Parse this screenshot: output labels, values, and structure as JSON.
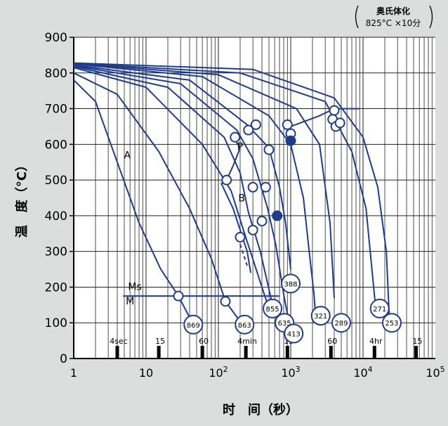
{
  "chart_data": {
    "type": "line",
    "note_line1": "奥氏体化",
    "note_line2": "825°C ×10分",
    "xlabel": "时　间（秒）",
    "ylabel": "温　度（°C）",
    "x_scale": "log",
    "xlim": [
      1,
      100000
    ],
    "ylim": [
      0,
      900
    ],
    "y_ticks": [
      0,
      100,
      200,
      300,
      400,
      500,
      600,
      700,
      800,
      900
    ],
    "x_ticks": [
      {
        "value": 1,
        "label": "1"
      },
      {
        "value": 10,
        "label": "10"
      },
      {
        "value": 100,
        "label": "10",
        "sup": "2"
      },
      {
        "value": 1000,
        "label": "10",
        "sup": "3"
      },
      {
        "value": 10000,
        "label": "10",
        "sup": "4"
      },
      {
        "value": 100000,
        "label": "10",
        "sup": "5"
      }
    ],
    "time_markers": [
      {
        "value": 4,
        "label": "4sec"
      },
      {
        "value": 15,
        "label": "15"
      },
      {
        "value": 60,
        "label": "60"
      },
      {
        "value": 240,
        "label": "4min"
      },
      {
        "value": 900,
        "label": "15"
      },
      {
        "value": 3600,
        "label": "60"
      },
      {
        "value": 14400,
        "label": "4hr"
      },
      {
        "value": 54000,
        "label": "15"
      }
    ],
    "grid": true,
    "ms_temperature": 175,
    "ms_line_xrange": [
      4.8,
      700
    ],
    "labels": [
      {
        "text": "A",
        "x": 5.5,
        "y": 560
      },
      {
        "text": "P",
        "x": 200,
        "y": 585
      },
      {
        "text": "B",
        "x": 210,
        "y": 440
      },
      {
        "text": "Ms",
        "x": 7,
        "y": 192
      },
      {
        "text": "M",
        "x": 6,
        "y": 152
      }
    ],
    "cooling_curves": [
      {
        "hardness": "869",
        "points": [
          [
            1,
            780
          ],
          [
            2,
            720
          ],
          [
            4,
            550
          ],
          [
            8,
            380
          ],
          [
            16,
            250
          ],
          [
            28,
            175
          ],
          [
            40,
            115
          ]
        ],
        "label_at": [
          45,
          95
        ]
      },
      {
        "hardness": "863",
        "points": [
          [
            1,
            800
          ],
          [
            4,
            740
          ],
          [
            15,
            580
          ],
          [
            40,
            420
          ],
          [
            80,
            280
          ],
          [
            125,
            160
          ],
          [
            190,
            110
          ]
        ],
        "label_at": [
          230,
          95
        ]
      },
      {
        "hardness": "855",
        "points": [
          [
            1,
            815
          ],
          [
            10,
            760
          ],
          [
            60,
            600
          ],
          [
            150,
            470
          ],
          [
            230,
            350
          ],
          [
            400,
            200
          ],
          [
            500,
            140
          ]
        ],
        "label_at": [
          560,
          140
        ]
      },
      {
        "hardness": "635",
        "points": [
          [
            1,
            818
          ],
          [
            20,
            760
          ],
          [
            120,
            620
          ],
          [
            200,
            520
          ],
          [
            260,
            410
          ],
          [
            380,
            300
          ],
          [
            560,
            150
          ],
          [
            800,
            100
          ]
        ],
        "label_at": [
          820,
          100
        ]
      },
      {
        "hardness": "413",
        "points": [
          [
            1,
            820
          ],
          [
            30,
            770
          ],
          [
            180,
            640
          ],
          [
            300,
            560
          ],
          [
            480,
            420
          ],
          [
            620,
            320
          ],
          [
            800,
            180
          ],
          [
            1000,
            75
          ]
        ],
        "label_at": [
          1100,
          70
        ]
      },
      {
        "hardness": "388",
        "points": [
          [
            1,
            822
          ],
          [
            40,
            780
          ],
          [
            250,
            655
          ],
          [
            500,
            590
          ],
          [
            700,
            480
          ],
          [
            850,
            380
          ],
          [
            1000,
            250
          ]
        ],
        "label_at": [
          1000,
          210
        ]
      },
      {
        "hardness": "321",
        "points": [
          [
            1,
            825
          ],
          [
            60,
            790
          ],
          [
            500,
            680
          ],
          [
            1000,
            600
          ],
          [
            1500,
            450
          ],
          [
            1800,
            300
          ],
          [
            2100,
            180
          ],
          [
            2200,
            120
          ]
        ],
        "label_at": [
          2600,
          120
        ]
      },
      {
        "hardness": "289",
        "points": [
          [
            1,
            826
          ],
          [
            100,
            795
          ],
          [
            1200,
            700
          ],
          [
            2500,
            600
          ],
          [
            3500,
            380
          ],
          [
            4000,
            170
          ]
        ],
        "label_at": [
          5000,
          100
        ]
      },
      {
        "hardness": "271",
        "points": [
          [
            1,
            827
          ],
          [
            200,
            800
          ],
          [
            3000,
            720
          ],
          [
            7000,
            580
          ],
          [
            11000,
            420
          ],
          [
            14000,
            200
          ],
          [
            15000,
            140
          ]
        ],
        "label_at": [
          17000,
          140
        ]
      },
      {
        "hardness": "253",
        "points": [
          [
            1,
            828
          ],
          [
            300,
            810
          ],
          [
            4000,
            730
          ],
          [
            10000,
            620
          ],
          [
            16000,
            480
          ],
          [
            21000,
            300
          ],
          [
            23000,
            120
          ]
        ],
        "label_at": [
          25000,
          100
        ]
      }
    ],
    "transformation_start": [
      [
        160,
        620
      ],
      [
        200,
        590
      ],
      [
        160,
        540
      ],
      [
        130,
        500
      ],
      [
        110,
        490
      ],
      [
        160,
        420
      ],
      [
        200,
        360
      ],
      [
        250,
        300
      ],
      [
        280,
        240
      ]
    ],
    "transformation_end": [
      [
        1000,
        650
      ],
      [
        2500,
        680
      ],
      [
        4000,
        700
      ],
      [
        9000,
        700
      ]
    ],
    "open_markers": [
      [
        4000,
        695
      ],
      [
        3800,
        670
      ],
      [
        4200,
        650
      ],
      [
        4800,
        660
      ],
      [
        900,
        655
      ],
      [
        1000,
        630
      ],
      [
        330,
        655
      ],
      [
        260,
        640
      ],
      [
        170,
        620
      ],
      [
        500,
        585
      ],
      [
        130,
        500
      ],
      [
        300,
        480
      ],
      [
        450,
        480
      ],
      [
        400,
        385
      ],
      [
        300,
        360
      ],
      [
        200,
        340
      ]
    ],
    "filled_markers": [
      [
        1000,
        610
      ],
      [
        650,
        400
      ]
    ]
  }
}
